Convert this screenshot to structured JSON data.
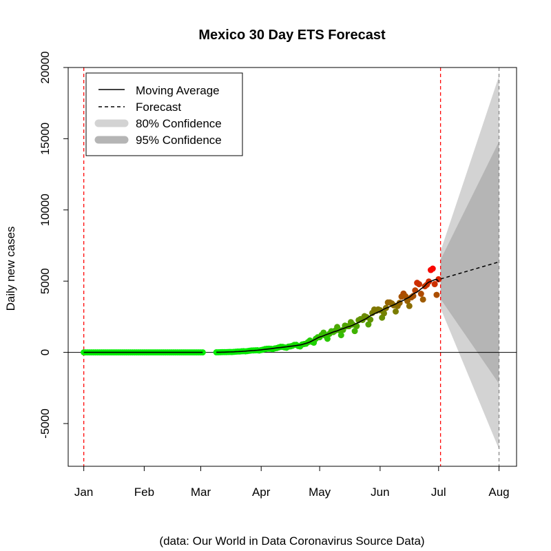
{
  "chart_data": {
    "type": "line",
    "title": "Mexico 30 Day ETS Forecast",
    "ylabel": "Daily new cases",
    "xlabel": "",
    "caption": "(data: Our World in Data Coronavirus Source Data)",
    "ylim": [
      -8000,
      20000
    ],
    "yticks": [
      -5000,
      0,
      5000,
      10000,
      15000,
      20000
    ],
    "x_range_days": [
      -8,
      222
    ],
    "x_axis_origin": "2020-01-01",
    "months": [
      {
        "label": "Jan",
        "day": 0
      },
      {
        "label": "Feb",
        "day": 31
      },
      {
        "label": "Mar",
        "day": 60
      },
      {
        "label": "Apr",
        "day": 91
      },
      {
        "label": "May",
        "day": 121
      },
      {
        "label": "Jun",
        "day": 152
      },
      {
        "label": "Jul",
        "day": 182
      },
      {
        "label": "Aug",
        "day": 213
      }
    ],
    "vlines_red_days": [
      0,
      183
    ],
    "vline_gray_day": 213,
    "legend": {
      "position": "top-left",
      "items": [
        {
          "label": "Moving Average",
          "style": "solid"
        },
        {
          "label": "Forecast",
          "style": "dashed"
        },
        {
          "label": "80% Confidence",
          "style": "band80"
        },
        {
          "label": "95% Confidence",
          "style": "band95"
        }
      ]
    },
    "daily_series": [
      {
        "start_day": 0,
        "end_day": 61,
        "value": 0
      },
      {
        "start_day": 68,
        "end_day": 182
      }
    ],
    "observed_keypoints": [
      [
        68,
        2
      ],
      [
        75,
        25
      ],
      [
        80,
        60
      ],
      [
        85,
        110
      ],
      [
        90,
        160
      ],
      [
        95,
        250
      ],
      [
        100,
        330
      ],
      [
        105,
        420
      ],
      [
        110,
        500
      ],
      [
        115,
        650
      ],
      [
        118,
        900
      ],
      [
        121,
        1100
      ],
      [
        125,
        1300
      ],
      [
        130,
        1550
      ],
      [
        135,
        1800
      ],
      [
        140,
        2050
      ],
      [
        145,
        2450
      ],
      [
        150,
        2850
      ],
      [
        155,
        3150
      ],
      [
        160,
        3500
      ],
      [
        165,
        3800
      ],
      [
        170,
        4250
      ],
      [
        175,
        4750
      ],
      [
        178,
        5200
      ],
      [
        180,
        5300
      ],
      [
        182,
        5200
      ]
    ],
    "forecast": {
      "start_day": 183,
      "end_day": 213,
      "mean": [
        5150,
        6350
      ],
      "band80": {
        "lower": [
          3750,
          -2200
        ],
        "upper": [
          6500,
          14800
        ]
      },
      "band95": {
        "lower": [
          3100,
          -6800
        ],
        "upper": [
          7100,
          19400
        ]
      }
    },
    "colors": {
      "early_points": "#00ee00",
      "late_points": "#ff0000",
      "moving_average": "#000000",
      "forecast": "#000000",
      "band80": "#d3d3d3",
      "band95": "#b5b5b5",
      "vline_red": "#ff0000",
      "vline_gray": "#888888"
    },
    "grid": false
  }
}
